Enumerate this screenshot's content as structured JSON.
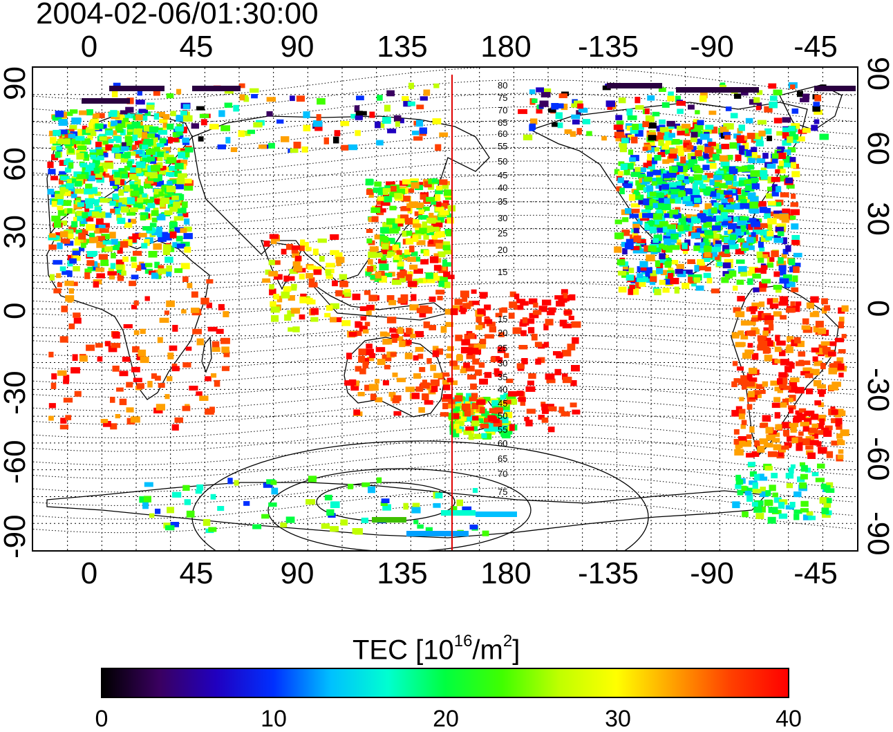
{
  "title": "2004-02-06/01:30:00",
  "map": {
    "top_lon_ticks": [
      "0",
      "45",
      "90",
      "135",
      "180",
      "-135",
      "-90",
      "-45"
    ],
    "bottom_lon_ticks": [
      "0",
      "45",
      "90",
      "135",
      "180",
      "-135",
      "-90",
      "-45"
    ],
    "left_lat_ticks": [
      "90",
      "60",
      "30",
      "0",
      "-30",
      "-60",
      "-90"
    ],
    "right_lat_ticks": [
      "90",
      "60",
      "30",
      "0",
      "-30",
      "-60",
      "-90"
    ],
    "contour_labels_north": [
      "80",
      "75",
      "70",
      "65",
      "60",
      "55",
      "50",
      "45",
      "40",
      "35",
      "30",
      "25",
      "20",
      "15"
    ],
    "contour_labels_south": [
      "15",
      "20",
      "25",
      "30",
      "35",
      "40",
      "45",
      "50",
      "55",
      "60",
      "65",
      "70",
      "75"
    ],
    "meridian_line_color": "#e00000"
  },
  "colorbar": {
    "title_main": "TEC  [10",
    "title_exp": "16",
    "title_mid": "/m",
    "title_exp2": "2",
    "title_end": "]",
    "ticks": [
      "0",
      "10",
      "20",
      "30",
      "40"
    ],
    "colors": [
      "#000000",
      "#3a0060",
      "#2000c0",
      "#0030ff",
      "#00c0ff",
      "#00ffd0",
      "#00ff40",
      "#40ff00",
      "#c0ff00",
      "#ffff00",
      "#ffa000",
      "#ff4000",
      "#ff0000"
    ]
  }
}
